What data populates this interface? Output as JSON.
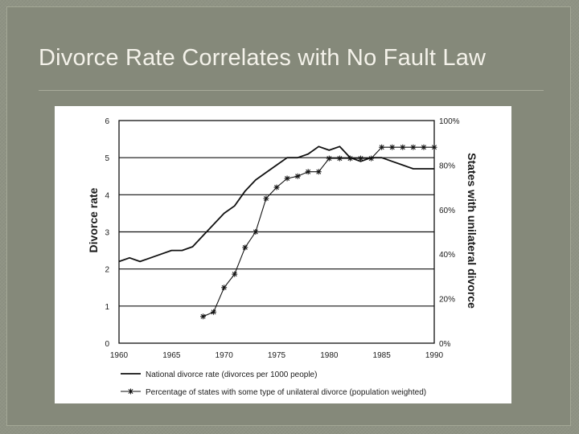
{
  "slide": {
    "title": "Divorce Rate Correlates with No Fault Law"
  },
  "chart_data": {
    "type": "line",
    "x": [
      1960,
      1961,
      1962,
      1963,
      1964,
      1965,
      1966,
      1967,
      1968,
      1969,
      1970,
      1971,
      1972,
      1973,
      1974,
      1975,
      1976,
      1977,
      1978,
      1979,
      1980,
      1981,
      1982,
      1983,
      1984,
      1985,
      1986,
      1987,
      1988,
      1989,
      1990
    ],
    "xlim": [
      1960,
      1990
    ],
    "x_ticks": [
      1960,
      1965,
      1970,
      1975,
      1980,
      1985,
      1990
    ],
    "ylabel": "Divorce rate",
    "ylim": [
      0,
      6
    ],
    "y_ticks": [
      0,
      1,
      2,
      3,
      4,
      5,
      6
    ],
    "y2label": "States with unilateral divorce",
    "y2lim": [
      0,
      100
    ],
    "y2_ticks": [
      "0%",
      "20%",
      "40%",
      "60%",
      "80%",
      "100%"
    ],
    "grid": "horizontal",
    "legend_position": "bottom",
    "series": [
      {
        "name": "National divorce rate  (divorces per 1000 people)",
        "axis": "left",
        "marker": "none",
        "color": "#111111",
        "x": [
          1960,
          1961,
          1962,
          1963,
          1964,
          1965,
          1966,
          1967,
          1968,
          1969,
          1970,
          1971,
          1972,
          1973,
          1974,
          1975,
          1976,
          1977,
          1978,
          1979,
          1980,
          1981,
          1982,
          1983,
          1984,
          1985,
          1986,
          1987,
          1988,
          1989,
          1990
        ],
        "values": [
          2.2,
          2.3,
          2.2,
          2.3,
          2.4,
          2.5,
          2.5,
          2.6,
          2.9,
          3.2,
          3.5,
          3.7,
          4.1,
          4.4,
          4.6,
          4.8,
          5.0,
          5.0,
          5.1,
          5.3,
          5.2,
          5.3,
          5.0,
          4.9,
          5.0,
          5.0,
          4.9,
          4.8,
          4.7,
          4.7,
          4.7
        ]
      },
      {
        "name": "Percentage of states with some type of unilateral divorce  (population weighted)",
        "axis": "right",
        "marker": "asterisk",
        "color": "#111111",
        "x": [
          1968,
          1969,
          1970,
          1971,
          1972,
          1973,
          1974,
          1975,
          1976,
          1977,
          1978,
          1979,
          1980,
          1981,
          1982,
          1983,
          1984,
          1985,
          1986,
          1987,
          1988,
          1989,
          1990
        ],
        "values": [
          12,
          14,
          25,
          31,
          43,
          50,
          65,
          70,
          74,
          75,
          77,
          77,
          83,
          83,
          83,
          83,
          83,
          88,
          88,
          88,
          88,
          88,
          88
        ]
      }
    ]
  }
}
